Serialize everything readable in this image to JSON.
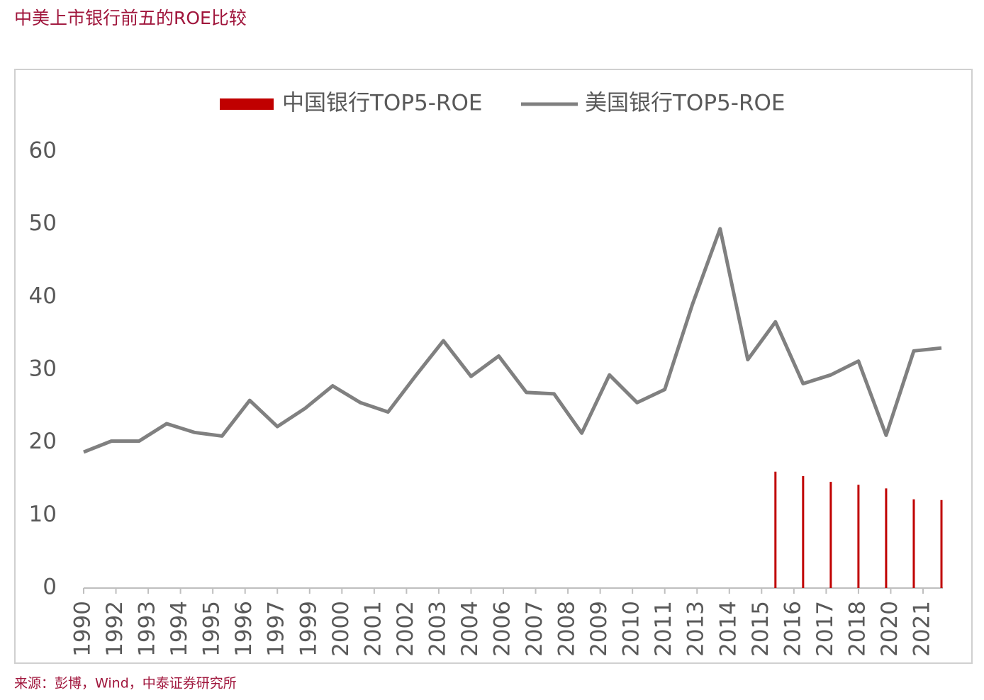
{
  "title": "中美上市银行前五的ROE比较",
  "source": "来源：彭博，Wind，中泰证券研究所",
  "chart_data": {
    "type": "combo",
    "x_tick_labels": [
      "1990",
      "1992",
      "1993",
      "1994",
      "1995",
      "1996",
      "1997",
      "1999",
      "2000",
      "2001",
      "2002",
      "2003",
      "2004",
      "2006",
      "2007",
      "2008",
      "2009",
      "2010",
      "2011",
      "2013",
      "2014",
      "2015",
      "2016",
      "2017",
      "2018",
      "2020",
      "2021"
    ],
    "series": [
      {
        "name": "中国银行TOP5-ROE",
        "type": "bar",
        "color": "#c00000",
        "values": [
          null,
          null,
          null,
          null,
          null,
          null,
          null,
          null,
          null,
          null,
          null,
          null,
          null,
          null,
          null,
          null,
          null,
          null,
          null,
          null,
          null,
          null,
          null,
          null,
          null,
          16.0,
          15.4,
          14.6,
          14.2,
          13.7,
          12.2,
          12.1
        ]
      },
      {
        "name": "美国银行TOP5-ROE",
        "type": "line",
        "color": "#808080",
        "values": [
          18.7,
          20.2,
          20.2,
          22.6,
          21.4,
          20.9,
          25.8,
          22.2,
          24.7,
          27.8,
          25.5,
          24.2,
          29.2,
          34.0,
          29.1,
          31.9,
          26.9,
          26.7,
          21.3,
          29.3,
          25.5,
          27.3,
          39.0,
          49.4,
          31.4,
          36.6,
          28.1,
          29.3,
          31.2,
          21.0,
          32.6,
          33.0
        ]
      }
    ],
    "ylim": [
      0,
      60
    ],
    "yticks": [
      0,
      10,
      20,
      30,
      40,
      50,
      60
    ],
    "legend": "top"
  }
}
